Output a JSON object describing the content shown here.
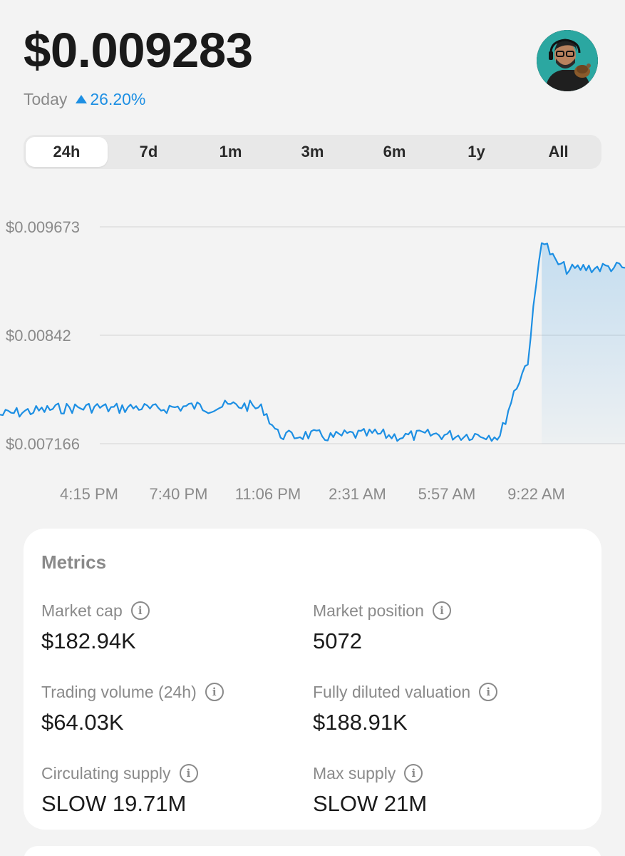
{
  "header": {
    "price": "$0.009283",
    "period_label": "Today",
    "change": "26.20%",
    "change_direction": "up",
    "accent_color": "#1d8fe3"
  },
  "avatar": {
    "icon": "user-avatar"
  },
  "ranges": {
    "tabs": [
      {
        "label": "24h",
        "active": true
      },
      {
        "label": "7d",
        "active": false
      },
      {
        "label": "1m",
        "active": false
      },
      {
        "label": "3m",
        "active": false
      },
      {
        "label": "6m",
        "active": false
      },
      {
        "label": "1y",
        "active": false
      },
      {
        "label": "All",
        "active": false
      }
    ]
  },
  "chart_data": {
    "type": "area",
    "y_ticks": [
      "$0.009673",
      "$0.00842",
      "$0.007166"
    ],
    "ylim": [
      0.007166,
      0.009673
    ],
    "x_ticks": [
      "4:15 PM",
      "7:40 PM",
      "11:06 PM",
      "2:31 AM",
      "5:57 AM",
      "9:22 AM"
    ],
    "grid": true,
    "line_color": "#1d8fe3",
    "series": [
      {
        "values": [
          0.0075,
          0.00752,
          0.00754,
          0.00755,
          0.00757,
          0.00758,
          0.00758,
          0.00759,
          0.00757,
          0.00758,
          0.00759,
          0.00756,
          0.00758,
          0.00759,
          0.0076,
          0.00758,
          0.0076,
          0.00761,
          0.0076,
          0.00756,
          0.00728,
          0.00725,
          0.00727,
          0.00726,
          0.00724,
          0.00727,
          0.00727,
          0.00728,
          0.00726,
          0.00725,
          0.00726,
          0.00727,
          0.00727,
          0.00726,
          0.00727,
          0.00727,
          0.00725,
          0.00776,
          0.00813,
          0.00955,
          0.00926,
          0.00917,
          0.0092,
          0.0092,
          0.00921,
          0.0092
        ]
      }
    ]
  },
  "metrics": {
    "title": "Metrics",
    "items": [
      {
        "label": "Market cap",
        "value": "$182.94K"
      },
      {
        "label": "Market position",
        "value": "5072"
      },
      {
        "label": "Trading volume (24h)",
        "value": "$64.03K"
      },
      {
        "label": "Fully diluted valuation",
        "value": "$188.91K"
      },
      {
        "label": "Circulating supply",
        "value": "SLOW 19.71M"
      },
      {
        "label": "Max supply",
        "value": "SLOW 21M"
      }
    ]
  }
}
